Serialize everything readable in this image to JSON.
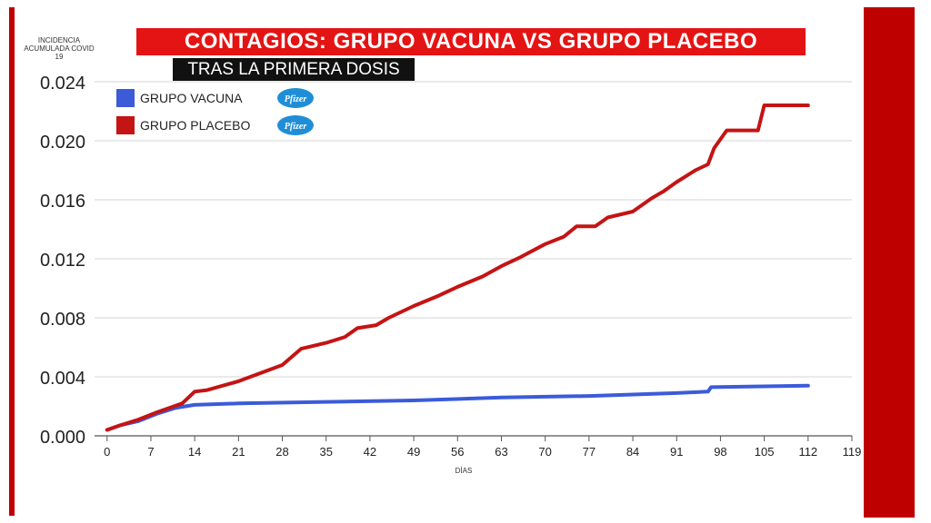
{
  "title": "CONTAGIOS: GRUPO VACUNA VS GRUPO PLACEBO",
  "subtitle": "TRAS LA PRIMERA DOSIS",
  "colors": {
    "accent_red": "#c00000",
    "title_red": "#e41414",
    "vaccine_blue": "#3b5bd9",
    "placebo_red": "#c41414"
  },
  "legend_badge": "Pfizer",
  "chart_data": {
    "type": "line",
    "ylabel": "INCIDENCIA ACUMULADA COVID 19",
    "xlabel": "DÍAS",
    "xlim": [
      -2,
      119
    ],
    "ylim": [
      0,
      0.024
    ],
    "x_ticks": [
      0,
      7,
      14,
      21,
      28,
      35,
      42,
      49,
      56,
      63,
      70,
      77,
      84,
      91,
      98,
      105,
      112,
      119
    ],
    "y_ticks": [
      "0.000",
      "0.004",
      "0.008",
      "0.012",
      "0.016",
      "0.020",
      "0.024"
    ],
    "grid": true,
    "legend_position": "top-left",
    "series": [
      {
        "name": "GRUPO VACUNA",
        "color": "#3b5bd9",
        "points": [
          [
            0,
            0.0004
          ],
          [
            2,
            0.0007
          ],
          [
            5,
            0.001
          ],
          [
            8,
            0.0015
          ],
          [
            11,
            0.0019
          ],
          [
            14,
            0.0021
          ],
          [
            21,
            0.0022
          ],
          [
            35,
            0.0023
          ],
          [
            49,
            0.0024
          ],
          [
            63,
            0.0026
          ],
          [
            77,
            0.0027
          ],
          [
            91,
            0.0029
          ],
          [
            96,
            0.003
          ],
          [
            96.5,
            0.0033
          ],
          [
            112,
            0.0034
          ]
        ]
      },
      {
        "name": "GRUPO PLACEBO",
        "color": "#c41414",
        "points": [
          [
            0,
            0.0004
          ],
          [
            2,
            0.0007
          ],
          [
            5,
            0.0011
          ],
          [
            8,
            0.0016
          ],
          [
            10,
            0.0019
          ],
          [
            12,
            0.0022
          ],
          [
            14,
            0.003
          ],
          [
            16,
            0.0031
          ],
          [
            21,
            0.0037
          ],
          [
            28,
            0.0048
          ],
          [
            31,
            0.0059
          ],
          [
            35,
            0.0063
          ],
          [
            38,
            0.0067
          ],
          [
            40,
            0.0073
          ],
          [
            43,
            0.0075
          ],
          [
            45,
            0.008
          ],
          [
            49,
            0.0088
          ],
          [
            53,
            0.0095
          ],
          [
            56,
            0.0101
          ],
          [
            60,
            0.0108
          ],
          [
            63,
            0.0115
          ],
          [
            66,
            0.0121
          ],
          [
            70,
            0.013
          ],
          [
            73,
            0.0135
          ],
          [
            75,
            0.0142
          ],
          [
            78,
            0.0142
          ],
          [
            80,
            0.0148
          ],
          [
            84,
            0.0152
          ],
          [
            87,
            0.0161
          ],
          [
            89,
            0.0166
          ],
          [
            91,
            0.0172
          ],
          [
            94,
            0.018
          ],
          [
            96,
            0.0184
          ],
          [
            97,
            0.0195
          ],
          [
            99,
            0.0207
          ],
          [
            104,
            0.0207
          ],
          [
            105,
            0.0224
          ],
          [
            112,
            0.0224
          ]
        ]
      }
    ]
  }
}
